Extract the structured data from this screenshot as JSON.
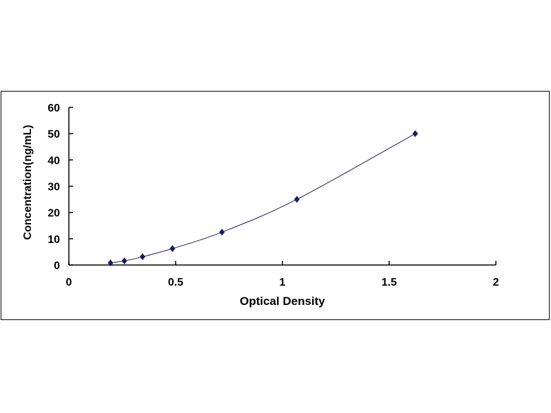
{
  "chart_data": {
    "type": "scatter",
    "title": "",
    "xlabel": "Optical Density",
    "ylabel": "Concentration(ng/mL)",
    "xlim": [
      0,
      2
    ],
    "ylim": [
      0,
      60
    ],
    "xticks": [
      "0",
      "0.5",
      "1",
      "1.5",
      "2"
    ],
    "yticks": [
      "0",
      "10",
      "20",
      "30",
      "40",
      "50",
      "60"
    ],
    "grid": false,
    "trendline": "smooth curve",
    "marker_color": "#1a1a5e",
    "line_color": "#1a1a5e",
    "points": [
      {
        "x": 0.195,
        "y": 0.78
      },
      {
        "x": 0.26,
        "y": 1.56
      },
      {
        "x": 0.345,
        "y": 3.13
      },
      {
        "x": 0.485,
        "y": 6.25
      },
      {
        "x": 0.717,
        "y": 12.5
      },
      {
        "x": 1.068,
        "y": 25
      },
      {
        "x": 1.622,
        "y": 50
      }
    ]
  }
}
